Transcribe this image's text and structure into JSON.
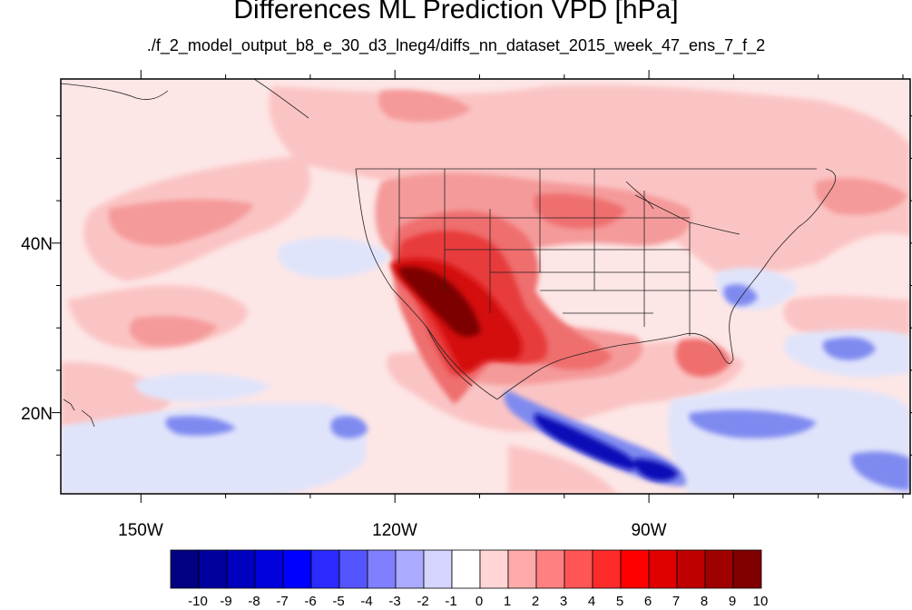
{
  "title": "Differences ML Prediction VPD [hPa]",
  "subtitle": "./f_2_model_output_b8_e_30_d3_lneg4/diffs_nn_dataset_2015_week_47_ens_7_f_2",
  "map": {
    "x_ticks": [
      "150W",
      "120W",
      "90W"
    ],
    "y_ticks": [
      "40N",
      "20N"
    ],
    "colors": {
      "base": "#fde6e6",
      "pos1": "#fbc4c4",
      "pos2": "#f59a9a",
      "pos3": "#ef6e6e",
      "pos4": "#e83a3a",
      "pos5": "#d40f0f",
      "pos6": "#a70000",
      "pos7": "#7d0000",
      "neg1": "#e0e4fb",
      "neg2": "#b6bdf5",
      "neg3": "#7f8af0",
      "neg4": "#3a3ee6",
      "neg5": "#0b0fb8"
    }
  },
  "colorbar": {
    "labels": [
      "-10",
      "-9",
      "-8",
      "-7",
      "-6",
      "-5",
      "-4",
      "-3",
      "-2",
      "-1",
      "0",
      "1",
      "2",
      "3",
      "4",
      "5",
      "6",
      "7",
      "8",
      "9",
      "10"
    ],
    "colors": [
      "#000080",
      "#00009f",
      "#0000be",
      "#0000dd",
      "#0000ff",
      "#2b2bff",
      "#5555ff",
      "#8080ff",
      "#aaaaff",
      "#d5d5ff",
      "#ffffff",
      "#ffd5d5",
      "#ffaaaa",
      "#ff8080",
      "#ff5555",
      "#ff2b2b",
      "#ff0000",
      "#df0000",
      "#bf0000",
      "#9f0000",
      "#800000"
    ]
  }
}
